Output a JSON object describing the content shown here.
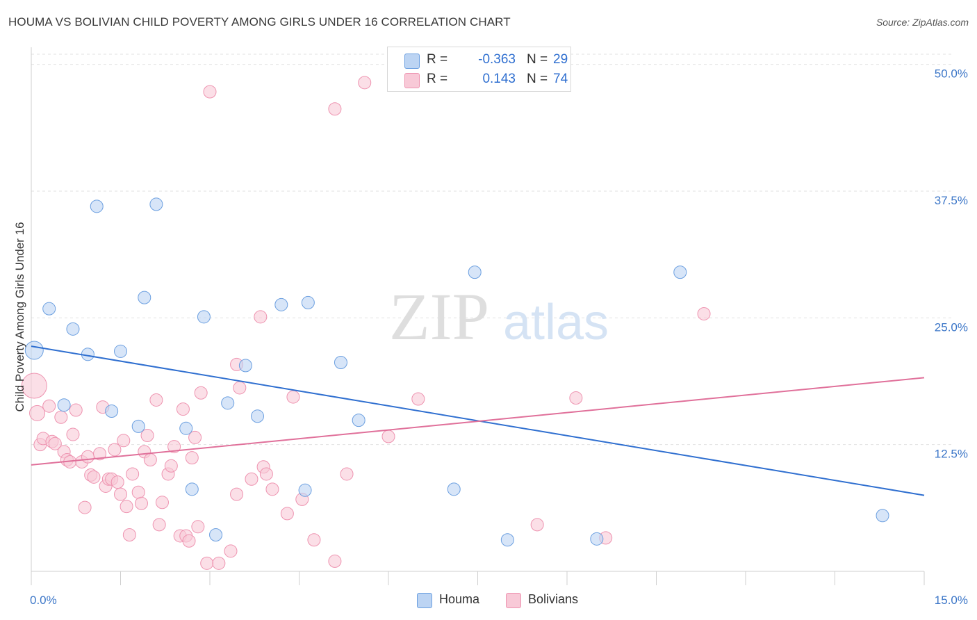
{
  "header": {
    "title": "HOUMA VS BOLIVIAN CHILD POVERTY AMONG GIRLS UNDER 16 CORRELATION CHART",
    "source": "Source: ZipAtlas.com"
  },
  "watermark": {
    "zip": "ZIP",
    "atlas": "atlas"
  },
  "legend_box": {
    "rows": [
      {
        "r_label": "R =",
        "r_value": "-0.363",
        "n_label": "N =",
        "n_value": "29",
        "color": "#a9c8f0"
      },
      {
        "r_label": "R =",
        "r_value": "0.143",
        "n_label": "N =",
        "n_value": "74",
        "color": "#f5b8cb"
      }
    ]
  },
  "bottom_legend": {
    "houma": "Houma",
    "bolivians": "Bolivians"
  },
  "chart_data": {
    "type": "scatter",
    "title": "HOUMA VS BOLIVIAN CHILD POVERTY AMONG GIRLS UNDER 16 CORRELATION CHART",
    "xlabel": "",
    "ylabel": "Child Poverty Among Girls Under 16",
    "xlim": [
      0,
      15
    ],
    "ylim": [
      0,
      51
    ],
    "x_tick_labels": [
      "0.0%",
      "15.0%"
    ],
    "y_ticks": [
      12.5,
      25.0,
      37.5,
      50.0
    ],
    "y_tick_labels": [
      "12.5%",
      "25.0%",
      "37.5%",
      "50.0%"
    ],
    "grid": true,
    "legend_position": "top-center",
    "series": [
      {
        "name": "Houma",
        "color": "#6b9fe0",
        "fill": "#bcd4f3",
        "trend": {
          "x": [
            0,
            15
          ],
          "y": [
            22.2,
            7.5
          ],
          "color": "#2f6fd0"
        },
        "points": [
          {
            "x": 0.05,
            "y": 21.8,
            "s": 13
          },
          {
            "x": 0.3,
            "y": 25.9,
            "s": 9
          },
          {
            "x": 0.55,
            "y": 16.4,
            "s": 9
          },
          {
            "x": 0.7,
            "y": 23.9,
            "s": 9
          },
          {
            "x": 0.95,
            "y": 21.4,
            "s": 9
          },
          {
            "x": 1.1,
            "y": 36.0,
            "s": 9
          },
          {
            "x": 1.35,
            "y": 15.8,
            "s": 9
          },
          {
            "x": 1.5,
            "y": 21.7,
            "s": 9
          },
          {
            "x": 1.8,
            "y": 14.3,
            "s": 9
          },
          {
            "x": 1.9,
            "y": 27.0,
            "s": 9
          },
          {
            "x": 2.1,
            "y": 36.2,
            "s": 9
          },
          {
            "x": 2.6,
            "y": 14.1,
            "s": 9
          },
          {
            "x": 2.7,
            "y": 8.1,
            "s": 9
          },
          {
            "x": 2.9,
            "y": 25.1,
            "s": 9
          },
          {
            "x": 3.1,
            "y": 3.6,
            "s": 9
          },
          {
            "x": 3.3,
            "y": 16.6,
            "s": 9
          },
          {
            "x": 3.6,
            "y": 20.3,
            "s": 9
          },
          {
            "x": 3.8,
            "y": 15.3,
            "s": 9
          },
          {
            "x": 4.2,
            "y": 26.3,
            "s": 9
          },
          {
            "x": 4.6,
            "y": 8.0,
            "s": 9
          },
          {
            "x": 4.65,
            "y": 26.5,
            "s": 9
          },
          {
            "x": 5.2,
            "y": 20.6,
            "s": 9
          },
          {
            "x": 5.5,
            "y": 14.9,
            "s": 9
          },
          {
            "x": 7.1,
            "y": 8.1,
            "s": 9
          },
          {
            "x": 7.45,
            "y": 29.5,
            "s": 9
          },
          {
            "x": 8.0,
            "y": 3.1,
            "s": 9
          },
          {
            "x": 9.5,
            "y": 3.2,
            "s": 9
          },
          {
            "x": 10.9,
            "y": 29.5,
            "s": 9
          },
          {
            "x": 14.3,
            "y": 5.5,
            "s": 9
          }
        ]
      },
      {
        "name": "Bolivians",
        "color": "#ee93b0",
        "fill": "#f8c9d7",
        "trend": {
          "x": [
            0,
            15
          ],
          "y": [
            10.5,
            19.1
          ],
          "color": "#e0709a"
        },
        "points": [
          {
            "x": 0.05,
            "y": 18.3,
            "s": 18
          },
          {
            "x": 0.1,
            "y": 15.6,
            "s": 11
          },
          {
            "x": 0.15,
            "y": 12.5,
            "s": 9
          },
          {
            "x": 0.2,
            "y": 13.1,
            "s": 9
          },
          {
            "x": 0.3,
            "y": 16.3,
            "s": 9
          },
          {
            "x": 0.35,
            "y": 12.8,
            "s": 9
          },
          {
            "x": 0.4,
            "y": 12.6,
            "s": 9
          },
          {
            "x": 0.5,
            "y": 15.2,
            "s": 9
          },
          {
            "x": 0.55,
            "y": 11.8,
            "s": 9
          },
          {
            "x": 0.6,
            "y": 11.0,
            "s": 9
          },
          {
            "x": 0.65,
            "y": 10.8,
            "s": 9
          },
          {
            "x": 0.7,
            "y": 13.5,
            "s": 9
          },
          {
            "x": 0.75,
            "y": 15.9,
            "s": 9
          },
          {
            "x": 0.85,
            "y": 10.8,
            "s": 9
          },
          {
            "x": 0.9,
            "y": 6.3,
            "s": 9
          },
          {
            "x": 0.95,
            "y": 11.3,
            "s": 9
          },
          {
            "x": 1.0,
            "y": 9.5,
            "s": 9
          },
          {
            "x": 1.05,
            "y": 9.3,
            "s": 9
          },
          {
            "x": 1.15,
            "y": 11.6,
            "s": 9
          },
          {
            "x": 1.2,
            "y": 16.2,
            "s": 9
          },
          {
            "x": 1.25,
            "y": 8.4,
            "s": 9
          },
          {
            "x": 1.3,
            "y": 9.1,
            "s": 9
          },
          {
            "x": 1.35,
            "y": 9.1,
            "s": 9
          },
          {
            "x": 1.4,
            "y": 12.0,
            "s": 9
          },
          {
            "x": 1.45,
            "y": 8.8,
            "s": 9
          },
          {
            "x": 1.5,
            "y": 7.6,
            "s": 9
          },
          {
            "x": 1.55,
            "y": 12.9,
            "s": 9
          },
          {
            "x": 1.6,
            "y": 6.4,
            "s": 9
          },
          {
            "x": 1.65,
            "y": 3.6,
            "s": 9
          },
          {
            "x": 1.7,
            "y": 9.6,
            "s": 9
          },
          {
            "x": 1.8,
            "y": 7.8,
            "s": 9
          },
          {
            "x": 1.85,
            "y": 6.7,
            "s": 9
          },
          {
            "x": 1.9,
            "y": 11.8,
            "s": 9
          },
          {
            "x": 1.95,
            "y": 13.4,
            "s": 9
          },
          {
            "x": 2.0,
            "y": 11.0,
            "s": 9
          },
          {
            "x": 2.1,
            "y": 16.9,
            "s": 9
          },
          {
            "x": 2.15,
            "y": 4.6,
            "s": 9
          },
          {
            "x": 2.2,
            "y": 6.8,
            "s": 9
          },
          {
            "x": 2.3,
            "y": 9.6,
            "s": 9
          },
          {
            "x": 2.35,
            "y": 10.4,
            "s": 9
          },
          {
            "x": 2.4,
            "y": 12.3,
            "s": 9
          },
          {
            "x": 2.5,
            "y": 3.5,
            "s": 9
          },
          {
            "x": 2.55,
            "y": 16.0,
            "s": 9
          },
          {
            "x": 2.6,
            "y": 3.5,
            "s": 9
          },
          {
            "x": 2.65,
            "y": 3.0,
            "s": 9
          },
          {
            "x": 2.7,
            "y": 11.2,
            "s": 9
          },
          {
            "x": 2.75,
            "y": 13.2,
            "s": 9
          },
          {
            "x": 2.8,
            "y": 4.4,
            "s": 9
          },
          {
            "x": 2.85,
            "y": 17.6,
            "s": 9
          },
          {
            "x": 2.95,
            "y": 0.8,
            "s": 9
          },
          {
            "x": 3.0,
            "y": 47.3,
            "s": 9
          },
          {
            "x": 3.15,
            "y": 0.8,
            "s": 9
          },
          {
            "x": 3.35,
            "y": 2.0,
            "s": 9
          },
          {
            "x": 3.45,
            "y": 7.6,
            "s": 9
          },
          {
            "x": 3.45,
            "y": 20.4,
            "s": 9
          },
          {
            "x": 3.5,
            "y": 18.1,
            "s": 9
          },
          {
            "x": 3.7,
            "y": 9.1,
            "s": 9
          },
          {
            "x": 3.85,
            "y": 25.1,
            "s": 9
          },
          {
            "x": 3.9,
            "y": 10.3,
            "s": 9
          },
          {
            "x": 3.95,
            "y": 9.6,
            "s": 9
          },
          {
            "x": 4.05,
            "y": 8.1,
            "s": 9
          },
          {
            "x": 4.3,
            "y": 5.7,
            "s": 9
          },
          {
            "x": 4.4,
            "y": 17.2,
            "s": 9
          },
          {
            "x": 4.55,
            "y": 7.1,
            "s": 9
          },
          {
            "x": 4.75,
            "y": 3.1,
            "s": 9
          },
          {
            "x": 5.1,
            "y": 45.6,
            "s": 9
          },
          {
            "x": 5.1,
            "y": 1.0,
            "s": 9
          },
          {
            "x": 5.3,
            "y": 9.6,
            "s": 9
          },
          {
            "x": 5.6,
            "y": 48.2,
            "s": 9
          },
          {
            "x": 6.0,
            "y": 13.3,
            "s": 9
          },
          {
            "x": 6.5,
            "y": 17.0,
            "s": 9
          },
          {
            "x": 8.5,
            "y": 4.6,
            "s": 9
          },
          {
            "x": 9.15,
            "y": 17.1,
            "s": 9
          },
          {
            "x": 9.65,
            "y": 3.3,
            "s": 9
          },
          {
            "x": 11.3,
            "y": 25.4,
            "s": 9
          }
        ]
      }
    ]
  }
}
